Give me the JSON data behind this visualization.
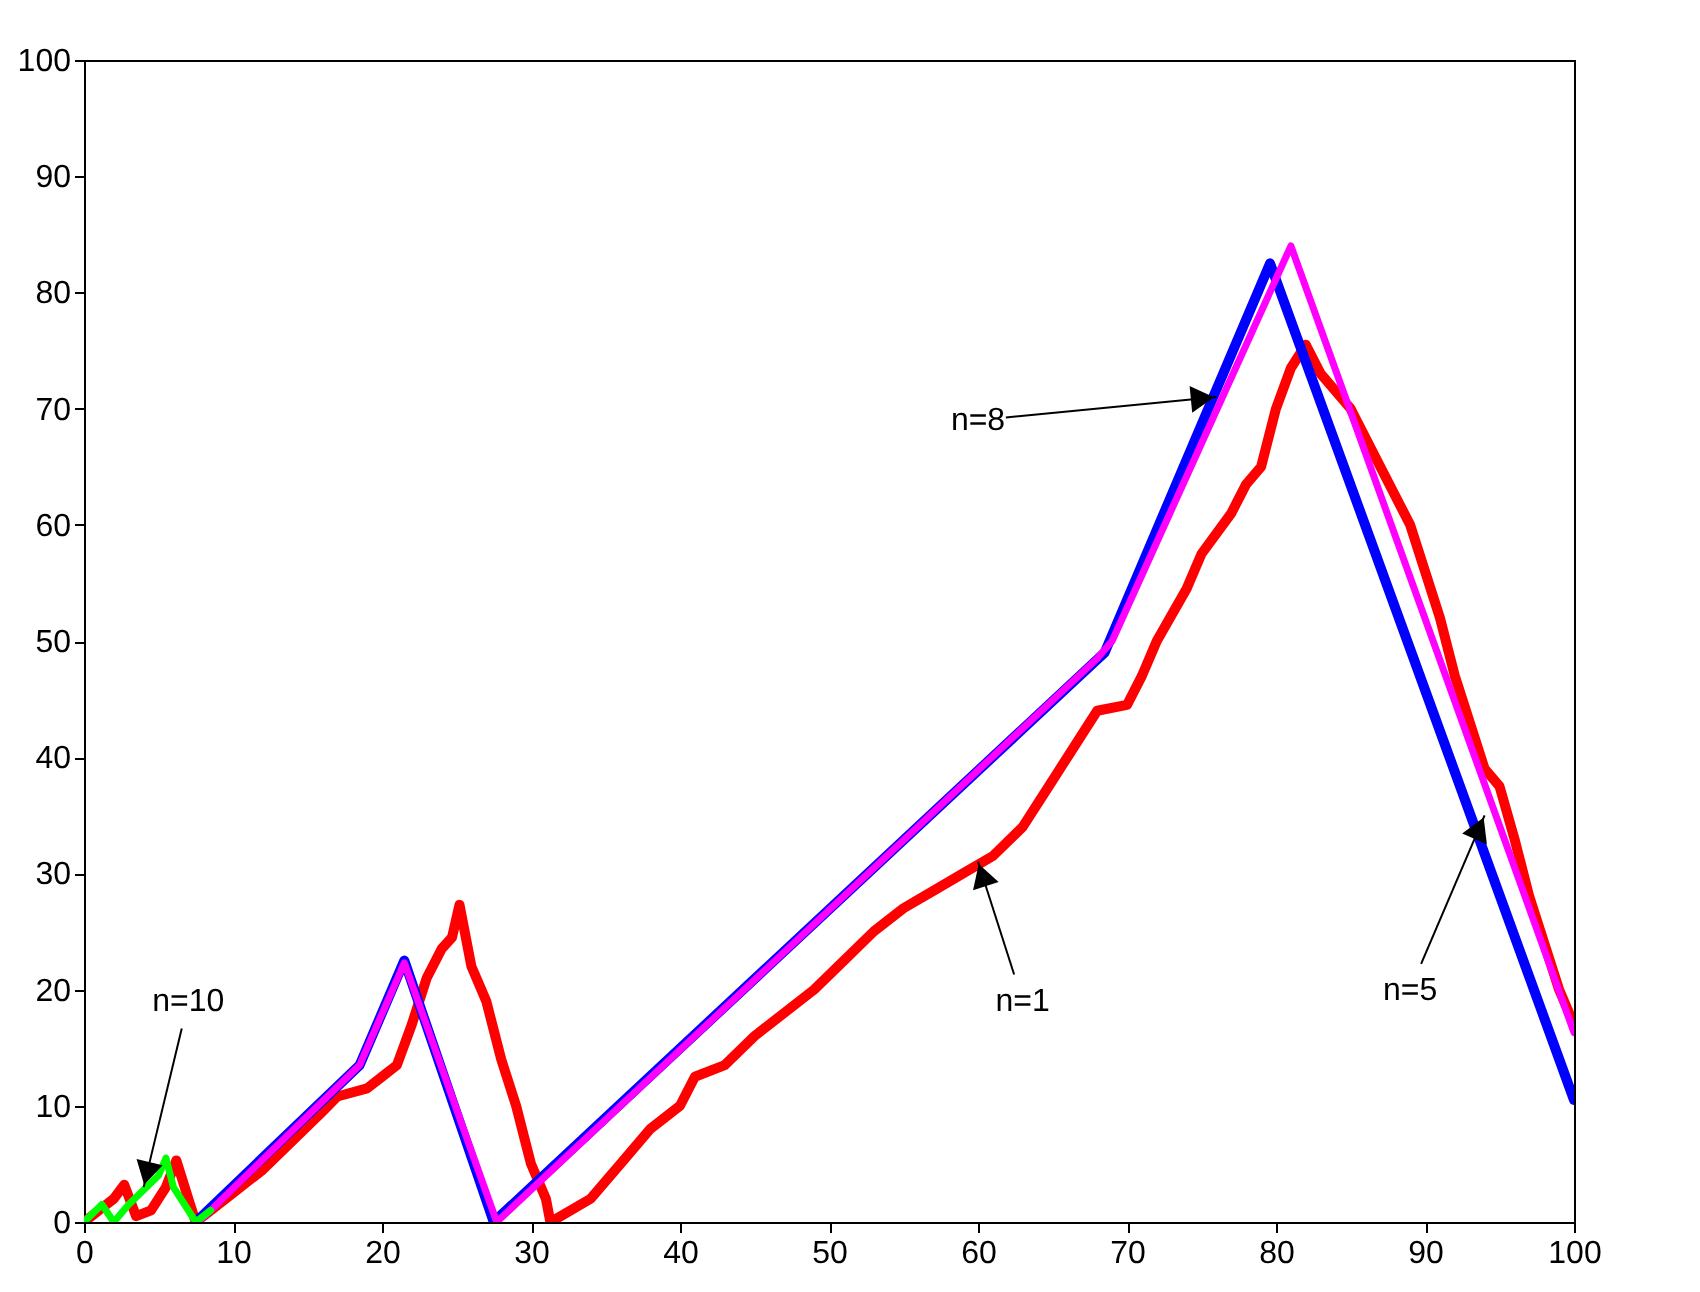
{
  "chart_data": {
    "type": "line",
    "xlim": [
      0,
      100
    ],
    "ylim": [
      0,
      100
    ],
    "xticks": [
      0,
      10,
      20,
      30,
      40,
      50,
      60,
      70,
      80,
      90,
      100
    ],
    "yticks": [
      0,
      10,
      20,
      30,
      40,
      50,
      60,
      70,
      80,
      90,
      100
    ],
    "grid": false,
    "marker": "none",
    "line_style": "solid",
    "series": [
      {
        "color": "#ff0000",
        "x": [
          0,
          1,
          2,
          2.7,
          3.5,
          4.5,
          5.5,
          6.2,
          7,
          7.5,
          8,
          10,
          12,
          14,
          16,
          17,
          19,
          20,
          21,
          22,
          23,
          24,
          24.7,
          25.2,
          26,
          27,
          28,
          29,
          30,
          31,
          31.3,
          32,
          34,
          36,
          38,
          40,
          41,
          43,
          45,
          47,
          49,
          51,
          53,
          55,
          57,
          59,
          61,
          63,
          65,
          66,
          67,
          68,
          70,
          71,
          72,
          74,
          75,
          77,
          78,
          79,
          80,
          81,
          82,
          83,
          85,
          87,
          89,
          90,
          91,
          92,
          93,
          94,
          95,
          96,
          97,
          98,
          99,
          100
        ],
        "values": [
          0,
          1,
          2,
          3.2,
          0.5,
          1,
          3,
          5.3,
          2,
          0,
          0.5,
          2.5,
          4.5,
          7,
          9.5,
          10.8,
          11.5,
          12.5,
          13.5,
          17,
          21,
          23.5,
          24.5,
          27.3,
          22,
          19,
          14,
          10,
          5,
          2,
          0,
          0.5,
          2,
          5,
          8,
          10,
          12.5,
          13.5,
          16,
          18,
          20,
          22.5,
          25,
          27,
          28.5,
          30,
          31.5,
          34,
          38,
          40,
          42,
          44,
          44.5,
          47,
          50,
          54.5,
          57.5,
          61,
          63.5,
          65,
          70,
          73.5,
          75.5,
          73,
          70,
          65,
          60,
          56,
          52,
          47,
          43,
          39,
          37.5,
          33,
          28,
          24,
          20,
          17
        ]
      },
      {
        "color": "#0000ff",
        "x": [
          7.5,
          18.5,
          21.5,
          27.5,
          68.5,
          79.6,
          100
        ],
        "values": [
          0,
          13.5,
          22.5,
          0,
          49,
          82.5,
          10.5
        ]
      },
      {
        "color": "#ff00ff",
        "x": [
          7.7,
          18.5,
          21.5,
          27.7,
          68,
          69,
          81,
          100
        ],
        "values": [
          0,
          13.5,
          22.3,
          0,
          48.5,
          50,
          84,
          16.3
        ]
      },
      {
        "color": "#00ff00",
        "x": [
          0,
          1.2,
          2,
          3,
          5,
          5.5,
          6,
          7.5,
          8.5
        ],
        "values": [
          0,
          1.5,
          0,
          1.5,
          4,
          5.5,
          3,
          0,
          1
        ]
      }
    ],
    "annotations": [
      {
        "text": "n=10",
        "x": 4,
        "y": 3
      },
      {
        "text": "n=8",
        "x": 76,
        "y": 71
      },
      {
        "text": "n=1",
        "x": 60,
        "y": 31
      },
      {
        "text": "n=5",
        "x": 94,
        "y": 35
      }
    ]
  }
}
